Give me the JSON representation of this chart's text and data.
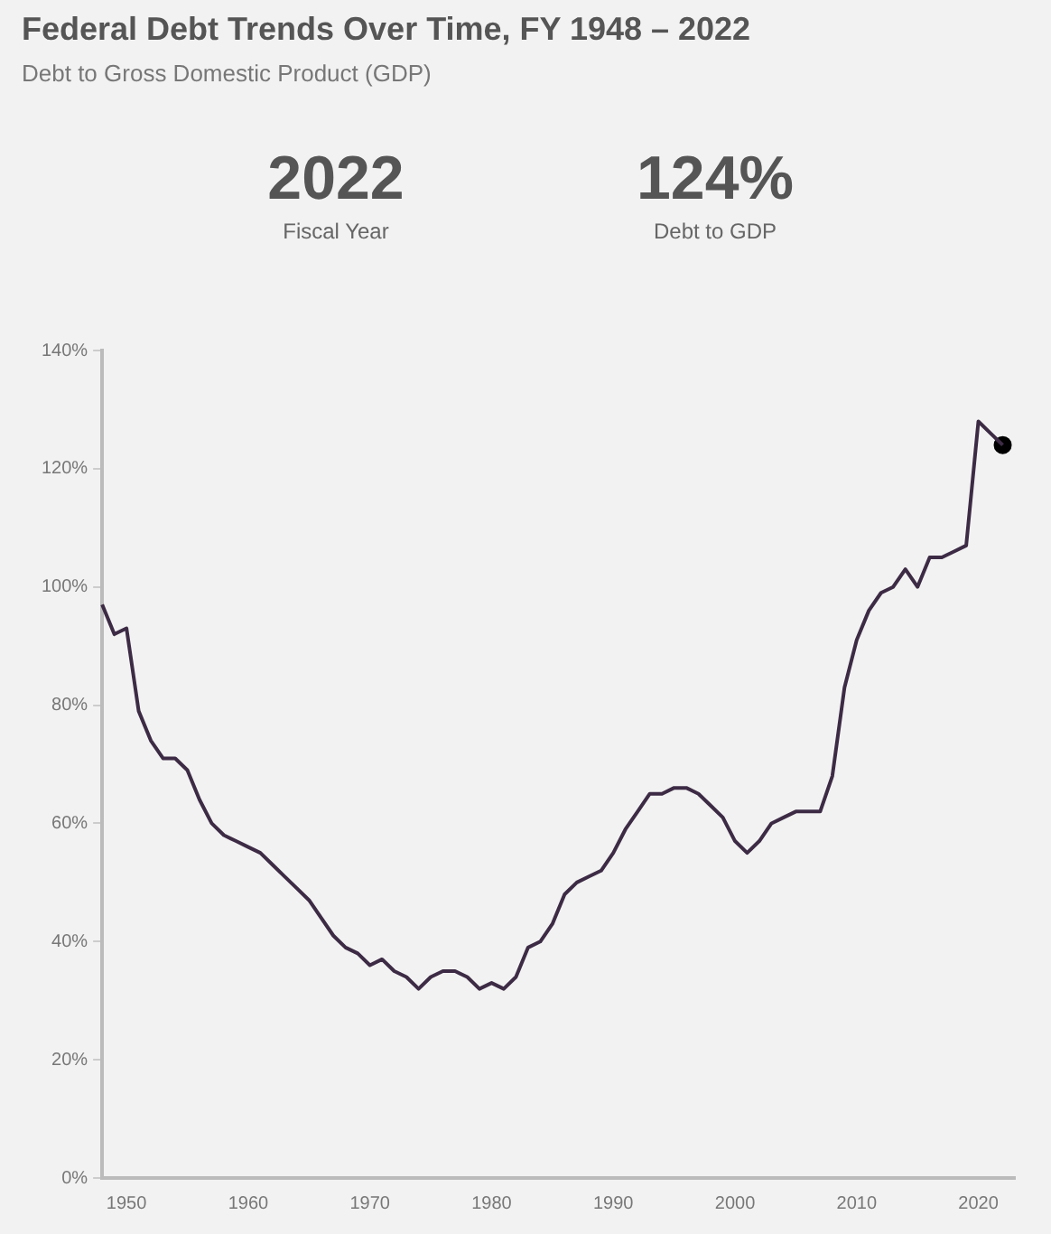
{
  "chart_data": {
    "type": "line",
    "title": "Federal Debt Trends Over Time, FY 1948 – 2022",
    "subtitle": "Debt to Gross Domestic Product (GDP)",
    "annotations": [
      "2022",
      "Fiscal Year",
      "124%",
      "Debt to GDP"
    ],
    "series": [
      {
        "color": "#3d2b45",
        "x": [
          1948,
          1949,
          1950,
          1951,
          1952,
          1953,
          1954,
          1955,
          1956,
          1957,
          1958,
          1959,
          1960,
          1961,
          1962,
          1963,
          1964,
          1965,
          1966,
          1967,
          1968,
          1969,
          1970,
          1971,
          1972,
          1973,
          1974,
          1975,
          1976,
          1977,
          1978,
          1979,
          1980,
          1981,
          1982,
          1983,
          1984,
          1985,
          1986,
          1987,
          1988,
          1989,
          1990,
          1991,
          1992,
          1993,
          1994,
          1995,
          1996,
          1997,
          1998,
          1999,
          2000,
          2001,
          2002,
          2003,
          2004,
          2005,
          2006,
          2007,
          2008,
          2009,
          2010,
          2011,
          2012,
          2013,
          2014,
          2015,
          2016,
          2017,
          2018,
          2019,
          2020,
          2021,
          2022
        ],
        "values": [
          97,
          92,
          93,
          79,
          74,
          71,
          71,
          69,
          64,
          60,
          58,
          57,
          56,
          55,
          53,
          51,
          49,
          47,
          44,
          41,
          39,
          38,
          36,
          37,
          35,
          34,
          32,
          34,
          35,
          35,
          34,
          32,
          33,
          32,
          34,
          39,
          40,
          43,
          48,
          50,
          51,
          52,
          55,
          59,
          62,
          65,
          65,
          66,
          66,
          65,
          63,
          61,
          57,
          55,
          57,
          60,
          61,
          62,
          62,
          62,
          68,
          83,
          91,
          96,
          99,
          100,
          103,
          100,
          105,
          105,
          106,
          107,
          128,
          126,
          124
        ]
      },
      {
        "type": "scatter",
        "color": "#000000",
        "marker": "circle",
        "x": [
          2022
        ],
        "values": [
          124
        ]
      }
    ],
    "xlim": [
      1948,
      2023
    ],
    "xticks": [
      1950,
      1960,
      1970,
      1980,
      1990,
      2000,
      2010,
      2020
    ],
    "ylim": [
      0,
      140
    ],
    "yticks": [
      {
        "value": 0,
        "label": "0%"
      },
      {
        "value": 20,
        "label": "20%"
      },
      {
        "value": 40,
        "label": "40%"
      },
      {
        "value": 60,
        "label": "60%"
      },
      {
        "value": 80,
        "label": "80%"
      },
      {
        "value": 100,
        "label": "100%"
      },
      {
        "value": 120,
        "label": "120%"
      },
      {
        "value": 140,
        "label": "140%"
      }
    ],
    "grid": false,
    "legend": false,
    "line_style": "solid"
  }
}
